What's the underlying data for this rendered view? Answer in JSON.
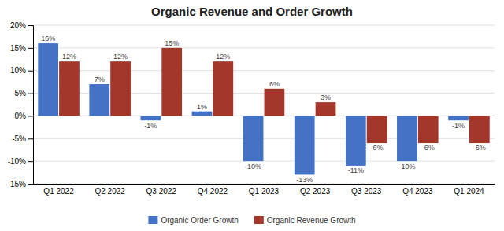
{
  "chart_data": {
    "type": "bar",
    "title": "Organic Revenue and Order Growth",
    "categories": [
      "Q1 2022",
      "Q2 2022",
      "Q3 2022",
      "Q4 2022",
      "Q1 2023",
      "Q2 2023",
      "Q3 2023",
      "Q4 2023",
      "Q1 2024"
    ],
    "series": [
      {
        "name": "Organic Order Growth",
        "color": "#4472C4",
        "values": [
          16,
          7,
          -1,
          1,
          -10,
          -13,
          -11,
          -10,
          -1
        ],
        "value_labels": [
          "16%",
          "7%",
          "-1%",
          "1%",
          "-10%",
          "-13%",
          "-11%",
          "-10%",
          "-1%"
        ]
      },
      {
        "name": "Organic Revenue Growth",
        "color": "#A5372A",
        "values": [
          12,
          12,
          15,
          12,
          6,
          3,
          -6,
          -6,
          -6
        ],
        "value_labels": [
          "12%",
          "12%",
          "15%",
          "12%",
          "6%",
          "3%",
          "-6%",
          "-6%",
          "-6%"
        ]
      }
    ],
    "ylim": [
      -15,
      20
    ],
    "yticks": [
      {
        "value": -15,
        "label": "-15%"
      },
      {
        "value": -10,
        "label": "-10%"
      },
      {
        "value": -5,
        "label": "-5%"
      },
      {
        "value": 0,
        "label": "0%"
      },
      {
        "value": 5,
        "label": "5%"
      },
      {
        "value": 10,
        "label": "10%"
      },
      {
        "value": 15,
        "label": "15%"
      },
      {
        "value": 20,
        "label": "20%"
      }
    ],
    "grid": true,
    "data_labels": true,
    "legend": "bottom"
  }
}
